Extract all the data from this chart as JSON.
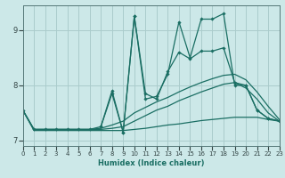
{
  "xlabel": "Humidex (Indice chaleur)",
  "background_color": "#cce8e8",
  "grid_color": "#aacccc",
  "line_color": "#1a6e63",
  "xlim": [
    0,
    23
  ],
  "ylim": [
    6.9,
    9.45
  ],
  "yticks": [
    7,
    8,
    9
  ],
  "xticks": [
    0,
    1,
    2,
    3,
    4,
    5,
    6,
    7,
    8,
    9,
    10,
    11,
    12,
    13,
    14,
    15,
    16,
    17,
    18,
    19,
    20,
    21,
    22,
    23
  ],
  "lines": [
    {
      "x": [
        0,
        1,
        2,
        3,
        4,
        5,
        6,
        7,
        8,
        9,
        10,
        11,
        12,
        13,
        14,
        15,
        16,
        17,
        18,
        19,
        20,
        21,
        22,
        23
      ],
      "y": [
        7.55,
        7.2,
        7.2,
        7.2,
        7.2,
        7.2,
        7.2,
        7.25,
        7.85,
        7.15,
        9.25,
        7.75,
        7.8,
        8.2,
        9.15,
        8.5,
        9.2,
        9.2,
        9.3,
        8.0,
        8.0,
        7.55,
        7.4,
        7.35
      ],
      "marker": true,
      "lw": 0.9
    },
    {
      "x": [
        0,
        1,
        2,
        3,
        4,
        5,
        6,
        7,
        8,
        9,
        10,
        11,
        12,
        13,
        14,
        15,
        16,
        17,
        18,
        19,
        20,
        21,
        22,
        23
      ],
      "y": [
        7.55,
        7.2,
        7.2,
        7.2,
        7.2,
        7.2,
        7.2,
        7.2,
        7.22,
        7.25,
        7.35,
        7.45,
        7.55,
        7.62,
        7.72,
        7.8,
        7.88,
        7.95,
        8.02,
        8.05,
        7.95,
        7.75,
        7.5,
        7.35
      ],
      "marker": false,
      "lw": 0.9
    },
    {
      "x": [
        0,
        1,
        2,
        3,
        4,
        5,
        6,
        7,
        8,
        9,
        10,
        11,
        12,
        13,
        14,
        15,
        16,
        17,
        18,
        19,
        20,
        21,
        22,
        23
      ],
      "y": [
        7.55,
        7.2,
        7.2,
        7.2,
        7.2,
        7.2,
        7.2,
        7.22,
        7.28,
        7.35,
        7.5,
        7.6,
        7.7,
        7.78,
        7.88,
        7.97,
        8.05,
        8.12,
        8.18,
        8.2,
        8.1,
        7.88,
        7.62,
        7.38
      ],
      "marker": false,
      "lw": 0.9
    },
    {
      "x": [
        0,
        1,
        2,
        3,
        4,
        5,
        6,
        7,
        8,
        9,
        10,
        11,
        12,
        13,
        14,
        15,
        16,
        17,
        18,
        19,
        20,
        21,
        22,
        23
      ],
      "y": [
        7.55,
        7.18,
        7.18,
        7.18,
        7.18,
        7.18,
        7.18,
        7.18,
        7.18,
        7.18,
        7.2,
        7.22,
        7.25,
        7.28,
        7.3,
        7.33,
        7.36,
        7.38,
        7.4,
        7.42,
        7.42,
        7.42,
        7.38,
        7.35
      ],
      "marker": false,
      "lw": 0.9
    },
    {
      "x": [
        7,
        8,
        9,
        10,
        11,
        12,
        13,
        14,
        15,
        16,
        17,
        18,
        19,
        20,
        21,
        22,
        23
      ],
      "y": [
        7.25,
        7.9,
        7.15,
        9.25,
        7.85,
        7.75,
        8.25,
        8.6,
        8.48,
        8.62,
        8.62,
        8.68,
        8.05,
        8.0,
        7.55,
        7.4,
        7.35
      ],
      "marker": true,
      "lw": 0.9
    }
  ]
}
